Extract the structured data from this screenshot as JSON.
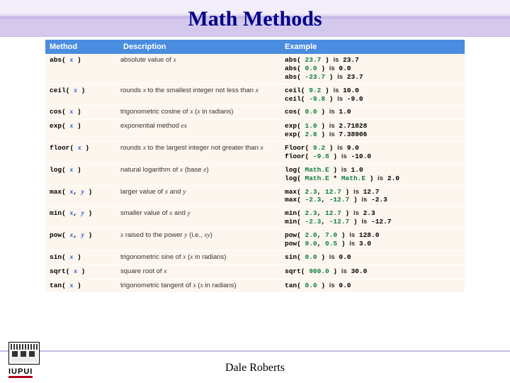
{
  "title": "Math Methods",
  "footer": "Dale Roberts",
  "logo_text": "IUPUI",
  "headers": {
    "c1": "Method",
    "c2": "Description",
    "c3": "Example"
  },
  "rows": [
    {
      "method_html": "abs( <i class='var blue'>x</i> )",
      "desc_html": "absolute value of <i class='var'>x</i>",
      "ex_html": "abs( <span class='green'>23.7</span> ) <span class='sans'>is</span> <span class='dark'>23.7</span><br>abs( <span class='green'>0.0</span> ) <span class='sans'>is</span> <span class='dark'>0.0</span><br>abs( <span class='green'>-23.7</span> ) <span class='sans'>is</span> <span class='dark'>23.7</span>"
    },
    {
      "method_html": "ceil( <i class='var blue'>x</i> )",
      "desc_html": "rounds <i class='var'>x</i> to the smallest integer not less than <i class='var'>x</i>",
      "ex_html": "ceil( <span class='green'>9.2</span> ) <span class='sans'>is</span> <span class='dark'>10.0</span><br>ceil( <span class='green'>-9.8</span> ) <span class='sans'>is</span> <span class='dark'>-9.0</span>"
    },
    {
      "method_html": "cos( <i class='var blue'>x</i> )",
      "desc_html": "trigonometric cosine of <i class='var'>x</i> (<i class='var'>x</i> in radians)",
      "ex_html": "cos( <span class='green'>0.0</span> ) <span class='sans'>is</span> <span class='dark'>1.0</span>"
    },
    {
      "method_html": "exp( <i class='var blue'>x</i> )",
      "desc_html": "exponential method <i class='var'>ex</i>",
      "ex_html": "exp( <span class='green'>1.0</span> ) <span class='sans'>is</span> <span class='dark'>2.71828</span><br>exp( <span class='green'>2.0</span> ) <span class='sans'>is</span> <span class='dark'>7.38906</span>"
    },
    {
      "method_html": "floor( <i class='var blue'>x</i> )",
      "desc_html": "rounds <i class='var'>x</i> to the largest integer not greater than <i class='var'>x</i>",
      "ex_html": "Floor( <span class='green'>9.2</span> ) <span class='sans'>is</span> <span class='dark'>9.0</span><br>floor( <span class='green'>-9.8</span> ) <span class='sans'>is</span> <span class='dark'>-10.0</span>"
    },
    {
      "method_html": "log( <i class='var blue'>x</i> )",
      "desc_html": "natural logarithm of <i class='var'>x</i> (base <i class='var'>e</i>)",
      "ex_html": "log( <span class='green'>Math.E</span> ) <span class='sans'>is</span> <span class='dark'>1.0</span><br>log( <span class='green'>Math.E</span> * <span class='green'>Math.E</span> ) <span class='sans'>is</span> <span class='dark'>2.0</span>"
    },
    {
      "method_html": "max( <i class='var blue'>x</i>, <i class='var blue'>y</i> )",
      "desc_html": "larger value of <i class='var'>x</i> and <i class='var'>y</i>",
      "ex_html": "max( <span class='green'>2.3</span>, <span class='green'>12.7</span> ) <span class='sans'>is</span> <span class='dark'>12.7</span><br>max( <span class='green'>-2.3</span>, <span class='green'>-12.7</span> ) <span class='sans'>is</span> <span class='dark'>-2.3</span>"
    },
    {
      "method_html": "min( <i class='var blue'>x</i>, <i class='var blue'>y</i> )",
      "desc_html": "smaller value of <i class='var'>x</i> and <i class='var'>y</i>",
      "ex_html": "min( <span class='green'>2.3</span>, <span class='green'>12.7</span> ) <span class='sans'>is</span> <span class='dark'>2.3</span><br>min( <span class='green'>-2.3</span>, <span class='green'>-12.7</span> ) <span class='sans'>is</span> <span class='dark'>-12.7</span>"
    },
    {
      "method_html": "pow( <i class='var blue'>x</i>, <i class='var blue'>y</i> )",
      "desc_html": "<i class='var'>x</i> raised to the power <i class='var'>y</i> (i.e., <i class='var'>xy</i>)",
      "ex_html": "pow( <span class='green'>2.0</span>, <span class='green'>7.0</span> ) <span class='sans'>is</span> <span class='dark'>128.0</span><br>pow( <span class='green'>9.0</span>, <span class='green'>0.5</span> ) <span class='sans'>is</span> <span class='dark'>3.0</span>"
    },
    {
      "method_html": "sin( <i class='var blue'>x</i> )",
      "desc_html": "trigonometric sine of <i class='var'>x</i> (<i class='var'>x</i> in radians)",
      "ex_html": "sin( <span class='green'>0.0</span> ) <span class='sans'>is</span> <span class='dark'>0.0</span>"
    },
    {
      "method_html": "sqrt( <i class='var blue'>x</i> )",
      "desc_html": "square root of <i class='var'>x</i>",
      "ex_html": "sqrt( <span class='green'>900.0</span> ) <span class='sans'>is</span> <span class='dark'>30.0</span>"
    },
    {
      "method_html": "tan( <i class='var blue'>x</i> )",
      "desc_html": "trigonometric tangent of <i class='var'>x</i> (<i class='var'>x</i> in radians)",
      "ex_html": "tan( <span class='green'>0.0</span> ) <span class='sans'>is</span> <span class='dark'>0.0</span>"
    }
  ]
}
